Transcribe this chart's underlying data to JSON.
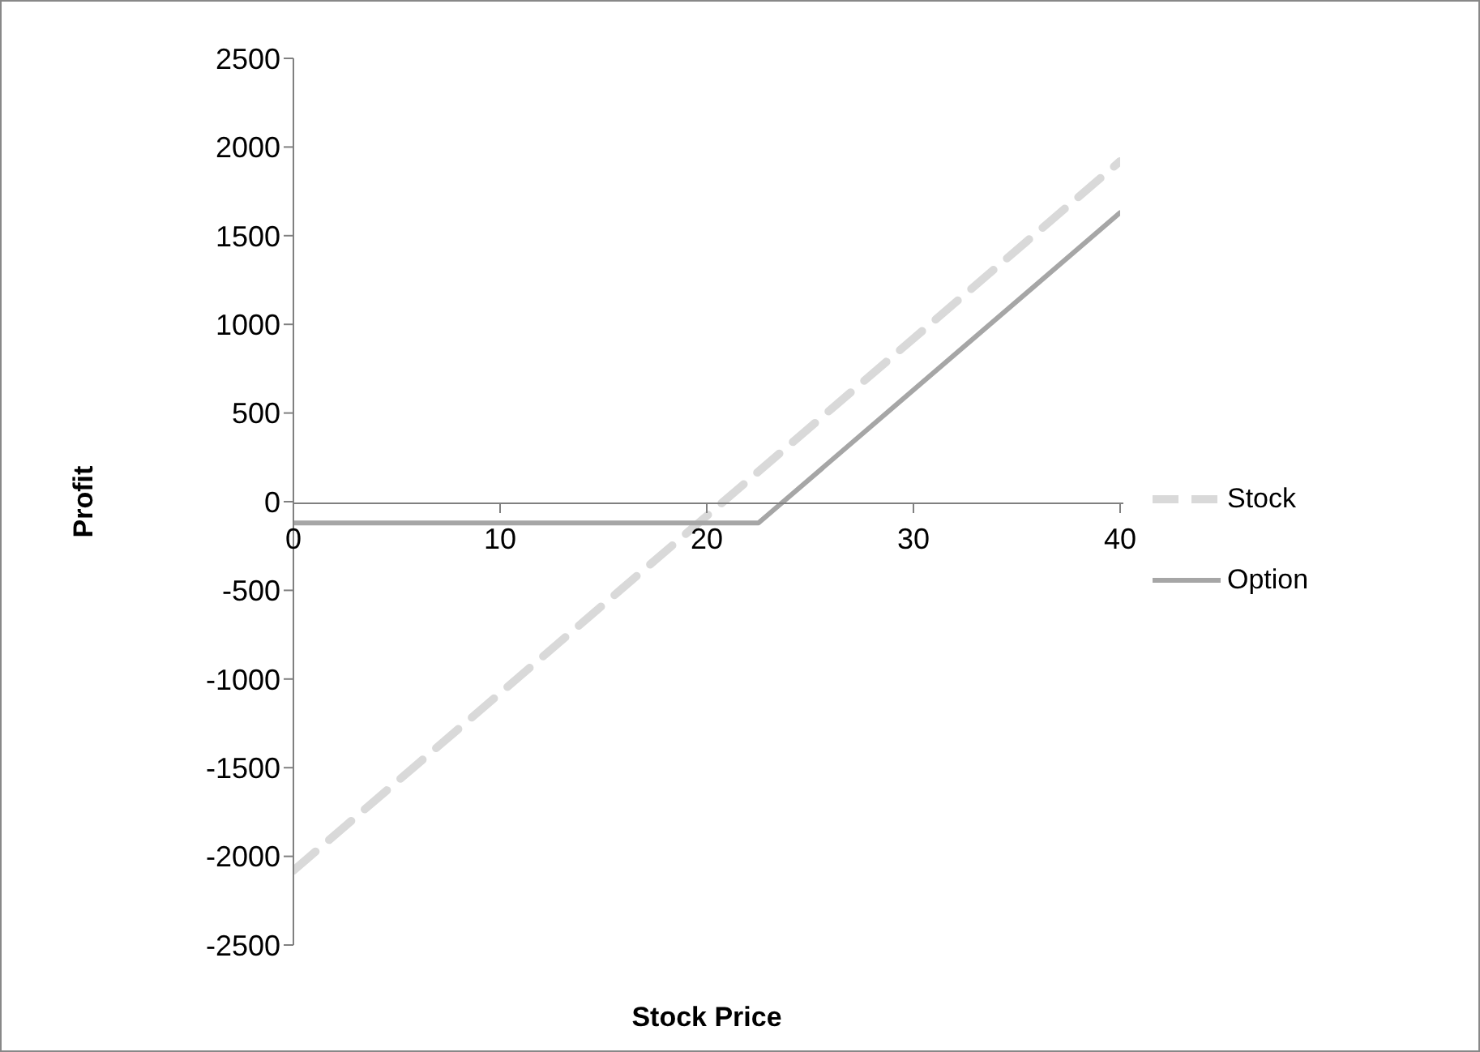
{
  "chart_data": {
    "type": "line",
    "xlabel": "Stock Price",
    "ylabel": "Profit",
    "xlim": [
      0,
      40
    ],
    "xticks": [
      0,
      10,
      20,
      30,
      40
    ],
    "ylim": [
      -2500,
      2500
    ],
    "yticks": [
      -2500,
      -2000,
      -1500,
      -1000,
      -500,
      0,
      500,
      1000,
      1500,
      2000,
      2500
    ],
    "grid": false,
    "legend": "right",
    "marker": "none",
    "series": [
      {
        "name": "Stock",
        "color": "#d9d9d9",
        "line_style": "dashed",
        "x": [
          0,
          40
        ],
        "values": [
          -2080,
          1920
        ]
      },
      {
        "name": "Option",
        "color": "#a6a6a6",
        "line_style": "solid",
        "x": [
          0,
          22.5,
          40
        ],
        "values": [
          -120,
          -120,
          1630
        ]
      }
    ]
  }
}
